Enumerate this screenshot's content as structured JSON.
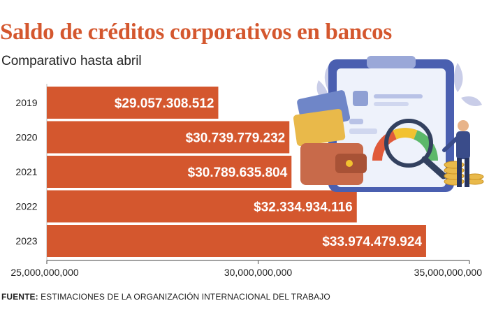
{
  "header": {
    "title": "Saldo de créditos corporativos en bancos",
    "subtitle": "Comparativo hasta abril"
  },
  "footer": {
    "source_label": "FUENTE:",
    "source_text": "ESTIMACIONES DE LA ORGANIZACIÓN INTERNACIONAL DEL TRABAJO"
  },
  "chart_data": {
    "type": "bar",
    "orientation": "horizontal",
    "title": "Saldo de créditos corporativos en bancos",
    "subtitle": "Comparativo hasta abril",
    "categories": [
      "2019",
      "2020",
      "2021",
      "2022",
      "2023"
    ],
    "values": [
      29057308512,
      30739779232,
      30789635804,
      32334934116,
      33974479924
    ],
    "data_labels": [
      "$29.057.308.512",
      "$30.739.779.232",
      "$30.789.635.804",
      "$32.334.934.116",
      "$33.974.479.924"
    ],
    "xlim": [
      25000000000,
      35000000000
    ],
    "x_ticks": [
      25000000000,
      30000000000,
      35000000000
    ],
    "x_tick_labels": [
      "25,000,000,000",
      "30,000,000,000",
      "35,000,000,000"
    ],
    "xlabel": "",
    "ylabel": "",
    "grid": false,
    "legend": "none",
    "bar_color": "#d4572e"
  }
}
